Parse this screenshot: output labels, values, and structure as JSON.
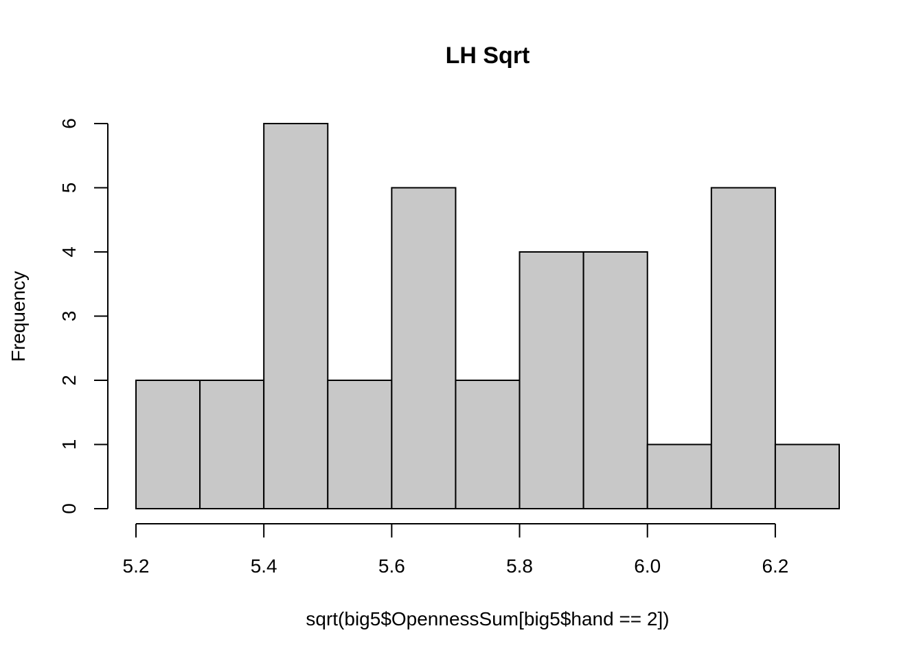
{
  "chart_data": {
    "type": "bar",
    "title": "LH Sqrt",
    "xlabel": "sqrt(big5$OpennessSum[big5$hand == 2])",
    "ylabel": "Frequency",
    "bins": [
      {
        "start": 5.2,
        "end": 5.3,
        "count": 2
      },
      {
        "start": 5.3,
        "end": 5.4,
        "count": 2
      },
      {
        "start": 5.4,
        "end": 5.5,
        "count": 6
      },
      {
        "start": 5.5,
        "end": 5.6,
        "count": 2
      },
      {
        "start": 5.6,
        "end": 5.7,
        "count": 5
      },
      {
        "start": 5.7,
        "end": 5.8,
        "count": 2
      },
      {
        "start": 5.8,
        "end": 5.9,
        "count": 4
      },
      {
        "start": 5.9,
        "end": 6.0,
        "count": 4
      },
      {
        "start": 6.0,
        "end": 6.1,
        "count": 1
      },
      {
        "start": 6.1,
        "end": 6.2,
        "count": 5
      },
      {
        "start": 6.2,
        "end": 6.3,
        "count": 1
      }
    ],
    "xlim": [
      5.2,
      6.3
    ],
    "ylim": [
      0,
      6
    ],
    "xticks": [
      "5.2",
      "5.4",
      "5.6",
      "5.8",
      "6.0",
      "6.2"
    ],
    "yticks": [
      "0",
      "1",
      "2",
      "3",
      "4",
      "5",
      "6"
    ],
    "grid": false,
    "bar_color": "#c8c8c8",
    "edge_color": "#000000"
  }
}
